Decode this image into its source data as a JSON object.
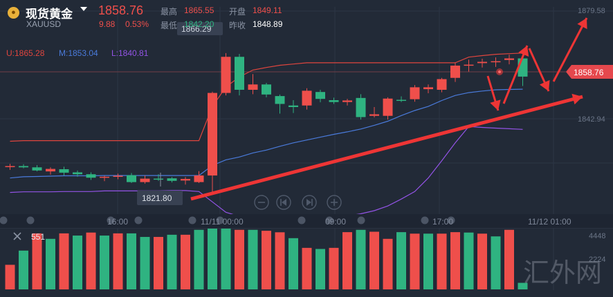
{
  "header": {
    "name": "现货黄金",
    "symbol": "XAUUSD",
    "price": "1858.76",
    "change": "9.88",
    "change_pct": "0.53%",
    "high_label": "最高",
    "high": "1865.55",
    "open_label": "开盘",
    "open": "1849.11",
    "low_label": "最低",
    "low": "1842.20",
    "prev_label": "昨收",
    "prev_close": "1848.89"
  },
  "indicators": {
    "upper": "U:1865.28",
    "middle": "M:1853.04",
    "lower": "L:1840.81"
  },
  "price_axis": {
    "top_label": "1879.58",
    "current_label": "1858.76",
    "mid_label": "1842.94"
  },
  "annotations": {
    "high_marker": "1866.29",
    "low_marker": "1821.80"
  },
  "time_axis": [
    "16:00",
    "11/11 00:00",
    "09:00",
    "17:00",
    "11/12 01:00"
  ],
  "volume": {
    "current": "551",
    "axis_top": "4448",
    "axis_mid": "2224"
  },
  "watermark": "汇外网",
  "colors": {
    "up": "#ef4f4b",
    "down": "#2fb381",
    "upper_band": "#e0453e",
    "middle_band": "#4a7bdc",
    "lower_band": "#9353e6",
    "arrow": "#ee3535",
    "price_tag": "#e5484d"
  },
  "chart_data": {
    "type": "candlestick",
    "y_range": [
      1815,
      1881
    ],
    "candles": [
      {
        "o": 1830.2,
        "h": 1831.0,
        "l": 1829.1,
        "c": 1830.3
      },
      {
        "o": 1830.3,
        "h": 1830.9,
        "l": 1829.6,
        "c": 1829.9
      },
      {
        "o": 1829.9,
        "h": 1830.6,
        "l": 1828.6,
        "c": 1828.9
      },
      {
        "o": 1828.6,
        "h": 1829.9,
        "l": 1827.6,
        "c": 1829.4
      },
      {
        "o": 1829.3,
        "h": 1830.1,
        "l": 1827.3,
        "c": 1828.2
      },
      {
        "o": 1828.3,
        "h": 1828.9,
        "l": 1826.9,
        "c": 1827.7
      },
      {
        "o": 1827.7,
        "h": 1828.3,
        "l": 1825.9,
        "c": 1826.6
      },
      {
        "o": 1826.6,
        "h": 1827.2,
        "l": 1825.5,
        "c": 1826.9
      },
      {
        "o": 1827.1,
        "h": 1827.9,
        "l": 1826.1,
        "c": 1827.2
      },
      {
        "o": 1827.4,
        "h": 1828.1,
        "l": 1824.9,
        "c": 1825.2
      },
      {
        "o": 1825.2,
        "h": 1827.3,
        "l": 1824.7,
        "c": 1826.3
      },
      {
        "o": 1826.3,
        "h": 1827.7,
        "l": 1825.6,
        "c": 1826.2
      },
      {
        "o": 1826.4,
        "h": 1826.8,
        "l": 1825.1,
        "c": 1825.6
      },
      {
        "o": 1825.7,
        "h": 1826.8,
        "l": 1824.4,
        "c": 1826.2
      },
      {
        "o": 1825.2,
        "h": 1828.7,
        "l": 1824.9,
        "c": 1827.3
      },
      {
        "o": 1827.3,
        "h": 1854.0,
        "l": 1821.8,
        "c": 1853.6
      },
      {
        "o": 1853.6,
        "h": 1866.3,
        "l": 1852.8,
        "c": 1865.1
      },
      {
        "o": 1865.1,
        "h": 1866.0,
        "l": 1852.8,
        "c": 1854.6
      },
      {
        "o": 1854.6,
        "h": 1859.6,
        "l": 1853.2,
        "c": 1856.3
      },
      {
        "o": 1856.3,
        "h": 1856.8,
        "l": 1852.2,
        "c": 1853.1
      },
      {
        "o": 1852.6,
        "h": 1853.1,
        "l": 1847.0,
        "c": 1850.1
      },
      {
        "o": 1849.6,
        "h": 1851.3,
        "l": 1847.2,
        "c": 1849.1
      },
      {
        "o": 1849.6,
        "h": 1855.1,
        "l": 1848.3,
        "c": 1854.3
      },
      {
        "o": 1853.9,
        "h": 1854.6,
        "l": 1850.6,
        "c": 1851.7
      },
      {
        "o": 1851.3,
        "h": 1852.1,
        "l": 1850.1,
        "c": 1850.7
      },
      {
        "o": 1850.7,
        "h": 1851.7,
        "l": 1849.6,
        "c": 1851.2
      },
      {
        "o": 1852.0,
        "h": 1853.2,
        "l": 1845.1,
        "c": 1845.9
      },
      {
        "o": 1846.3,
        "h": 1849.1,
        "l": 1845.8,
        "c": 1846.8
      },
      {
        "o": 1846.3,
        "h": 1852.2,
        "l": 1845.1,
        "c": 1851.8
      },
      {
        "o": 1851.4,
        "h": 1852.5,
        "l": 1850.7,
        "c": 1851.2
      },
      {
        "o": 1851.6,
        "h": 1856.1,
        "l": 1850.8,
        "c": 1855.4
      },
      {
        "o": 1854.8,
        "h": 1856.3,
        "l": 1853.5,
        "c": 1855.4
      },
      {
        "o": 1854.6,
        "h": 1858.4,
        "l": 1853.8,
        "c": 1858.0
      },
      {
        "o": 1858.4,
        "h": 1863.2,
        "l": 1857.1,
        "c": 1862.3
      },
      {
        "o": 1862.3,
        "h": 1864.2,
        "l": 1860.4,
        "c": 1862.6
      },
      {
        "o": 1863.1,
        "h": 1864.5,
        "l": 1861.7,
        "c": 1863.5
      },
      {
        "o": 1863.5,
        "h": 1864.9,
        "l": 1861.9,
        "c": 1863.7
      },
      {
        "o": 1864.1,
        "h": 1865.8,
        "l": 1862.7,
        "c": 1864.6
      },
      {
        "o": 1864.6,
        "h": 1865.1,
        "l": 1855.8,
        "c": 1858.8
      }
    ],
    "bands": {
      "upper": [
        [
          0,
          1838.2
        ],
        [
          1,
          1838.4
        ],
        [
          2,
          1838.4
        ],
        [
          3,
          1838.4
        ],
        [
          4,
          1838.4
        ],
        [
          5,
          1838.4
        ],
        [
          6,
          1838.4
        ],
        [
          7,
          1838.4
        ],
        [
          8,
          1838.4
        ],
        [
          9,
          1838.4
        ],
        [
          10,
          1838.4
        ],
        [
          11,
          1838.4
        ],
        [
          12,
          1838.4
        ],
        [
          13,
          1838.4
        ],
        [
          14,
          1838.4
        ],
        [
          15,
          1849.3
        ],
        [
          16,
          1855.5
        ],
        [
          17,
          1858.7
        ],
        [
          18,
          1860.9
        ],
        [
          19,
          1861.7
        ],
        [
          20,
          1862.4
        ],
        [
          21,
          1862.8
        ],
        [
          22,
          1863.2
        ],
        [
          23,
          1863.2
        ],
        [
          24,
          1863.2
        ],
        [
          25,
          1863.2
        ],
        [
          26,
          1863.2
        ],
        [
          27,
          1863.2
        ],
        [
          28,
          1863.2
        ],
        [
          29,
          1863.2
        ],
        [
          30,
          1863.2
        ],
        [
          31,
          1863.2
        ],
        [
          32,
          1863.2
        ],
        [
          33,
          1863.2
        ],
        [
          34,
          1865.0
        ],
        [
          35,
          1865.5
        ],
        [
          36,
          1865.9
        ],
        [
          37,
          1866.1
        ],
        [
          38,
          1866.3
        ]
      ],
      "middle": [
        [
          0,
          1826.5
        ],
        [
          1,
          1826.9
        ],
        [
          2,
          1827.0
        ],
        [
          3,
          1827.1
        ],
        [
          4,
          1827.2
        ],
        [
          5,
          1827.2
        ],
        [
          6,
          1827.2
        ],
        [
          7,
          1827.3
        ],
        [
          8,
          1827.3
        ],
        [
          9,
          1827.3
        ],
        [
          10,
          1827.3
        ],
        [
          11,
          1827.3
        ],
        [
          12,
          1827.3
        ],
        [
          13,
          1827.3
        ],
        [
          14,
          1827.3
        ],
        [
          15,
          1830.5
        ],
        [
          16,
          1832.3
        ],
        [
          17,
          1833.2
        ],
        [
          18,
          1834.5
        ],
        [
          19,
          1835.4
        ],
        [
          20,
          1836.6
        ],
        [
          21,
          1837.7
        ],
        [
          22,
          1838.6
        ],
        [
          23,
          1839.5
        ],
        [
          24,
          1840.4
        ],
        [
          25,
          1841.2
        ],
        [
          26,
          1842.1
        ],
        [
          27,
          1843.3
        ],
        [
          28,
          1844.6
        ],
        [
          29,
          1846.4
        ],
        [
          30,
          1848.0
        ],
        [
          31,
          1849.3
        ],
        [
          32,
          1851.2
        ],
        [
          33,
          1852.8
        ],
        [
          34,
          1853.7
        ],
        [
          35,
          1854.2
        ],
        [
          36,
          1854.6
        ],
        [
          37,
          1854.7
        ],
        [
          38,
          1854.8
        ]
      ],
      "lower": [
        [
          0,
          1821.9
        ],
        [
          1,
          1822.1
        ],
        [
          2,
          1822.1
        ],
        [
          3,
          1822.1
        ],
        [
          4,
          1822.2
        ],
        [
          5,
          1822.2
        ],
        [
          6,
          1822.2
        ],
        [
          7,
          1822.4
        ],
        [
          8,
          1822.4
        ],
        [
          9,
          1822.4
        ],
        [
          10,
          1822.4
        ],
        [
          11,
          1822.4
        ],
        [
          12,
          1822.5
        ],
        [
          13,
          1822.5
        ],
        [
          14,
          1822.2
        ],
        [
          15,
          1818.9
        ],
        [
          16,
          1815.6
        ],
        [
          17,
          1814.3
        ],
        [
          18,
          1814.2
        ],
        [
          19,
          1814.0
        ],
        [
          20,
          1814.0
        ],
        [
          21,
          1814.0
        ],
        [
          22,
          1814.0
        ],
        [
          23,
          1814.0
        ],
        [
          24,
          1814.2
        ],
        [
          25,
          1814.4
        ],
        [
          26,
          1815.1
        ],
        [
          27,
          1816.1
        ],
        [
          28,
          1817.6
        ],
        [
          29,
          1819.8
        ],
        [
          30,
          1822.2
        ],
        [
          31,
          1826.5
        ],
        [
          32,
          1832.0
        ],
        [
          33,
          1837.7
        ],
        [
          34,
          1842.9
        ],
        [
          35,
          1842.6
        ],
        [
          36,
          1842.4
        ],
        [
          37,
          1842.2
        ],
        [
          38,
          1842.0
        ]
      ]
    },
    "volume_range": [
      0,
      4448
    ],
    "volume_bars": [
      {
        "v": 1800,
        "up": false
      },
      {
        "v": 2840,
        "up": true
      },
      {
        "v": 4100,
        "up": false
      },
      {
        "v": 3700,
        "up": true
      },
      {
        "v": 4100,
        "up": false
      },
      {
        "v": 3940,
        "up": true
      },
      {
        "v": 4160,
        "up": false
      },
      {
        "v": 3940,
        "up": true
      },
      {
        "v": 4100,
        "up": false
      },
      {
        "v": 4100,
        "up": true
      },
      {
        "v": 3840,
        "up": true
      },
      {
        "v": 3840,
        "up": false
      },
      {
        "v": 4000,
        "up": true
      },
      {
        "v": 4000,
        "up": false
      },
      {
        "v": 4360,
        "up": true
      },
      {
        "v": 4450,
        "up": true
      },
      {
        "v": 4450,
        "up": true
      },
      {
        "v": 4360,
        "up": false
      },
      {
        "v": 4360,
        "up": true
      },
      {
        "v": 4290,
        "up": false
      },
      {
        "v": 4180,
        "up": false
      },
      {
        "v": 3750,
        "up": true
      },
      {
        "v": 3040,
        "up": false
      },
      {
        "v": 2960,
        "up": true
      },
      {
        "v": 3040,
        "up": false
      },
      {
        "v": 4190,
        "up": false
      },
      {
        "v": 4360,
        "up": true
      },
      {
        "v": 4220,
        "up": false
      },
      {
        "v": 3700,
        "up": false
      },
      {
        "v": 4190,
        "up": true
      },
      {
        "v": 4080,
        "up": false
      },
      {
        "v": 4080,
        "up": true
      },
      {
        "v": 4080,
        "up": false
      },
      {
        "v": 4190,
        "up": false
      },
      {
        "v": 4160,
        "up": true
      },
      {
        "v": 4080,
        "up": false
      },
      {
        "v": 3880,
        "up": true
      },
      {
        "v": 4360,
        "up": false
      },
      {
        "v": 480,
        "up": true
      }
    ]
  }
}
